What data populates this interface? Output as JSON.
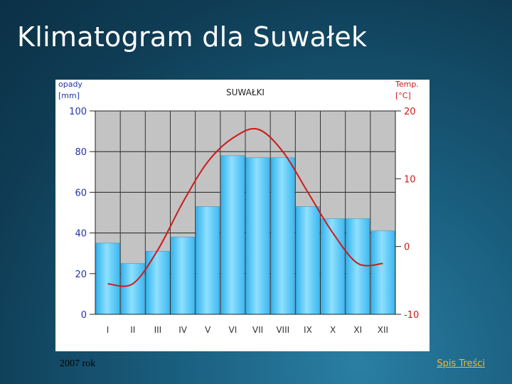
{
  "slide": {
    "title": "Klimatogram dla Suwałek",
    "caption": "2007 rok",
    "link_label": "Spis Treści"
  },
  "chart_data": {
    "type": "bar",
    "title": "SUWAŁKI",
    "categories": [
      "I",
      "II",
      "III",
      "IV",
      "V",
      "VI",
      "VII",
      "VIII",
      "IX",
      "X",
      "XI",
      "XII"
    ],
    "left_axis": {
      "label_line1": "opady",
      "label_line2": "[mm]",
      "range": [
        0,
        100
      ],
      "ticks": [
        0,
        20,
        40,
        60,
        80,
        100
      ]
    },
    "right_axis": {
      "label_line1": "Temp.",
      "label_line2": "[°C]",
      "range": [
        -10,
        20
      ],
      "ticks": [
        -10,
        0,
        10,
        20
      ]
    },
    "series": [
      {
        "name": "opady",
        "kind": "bar",
        "axis": "left",
        "color": "#6ccfff",
        "values": [
          35,
          25,
          31,
          38,
          53,
          78,
          77,
          77,
          53,
          47,
          47,
          41
        ]
      },
      {
        "name": "temp",
        "kind": "line",
        "axis": "right",
        "color": "#cc1a1a",
        "values": [
          -5.5,
          -5.5,
          -0.5,
          6.5,
          12.5,
          16,
          17.3,
          14,
          8,
          2,
          -2.5,
          -2.5
        ]
      }
    ],
    "grid": true,
    "background_color": "#c3c3c3"
  }
}
